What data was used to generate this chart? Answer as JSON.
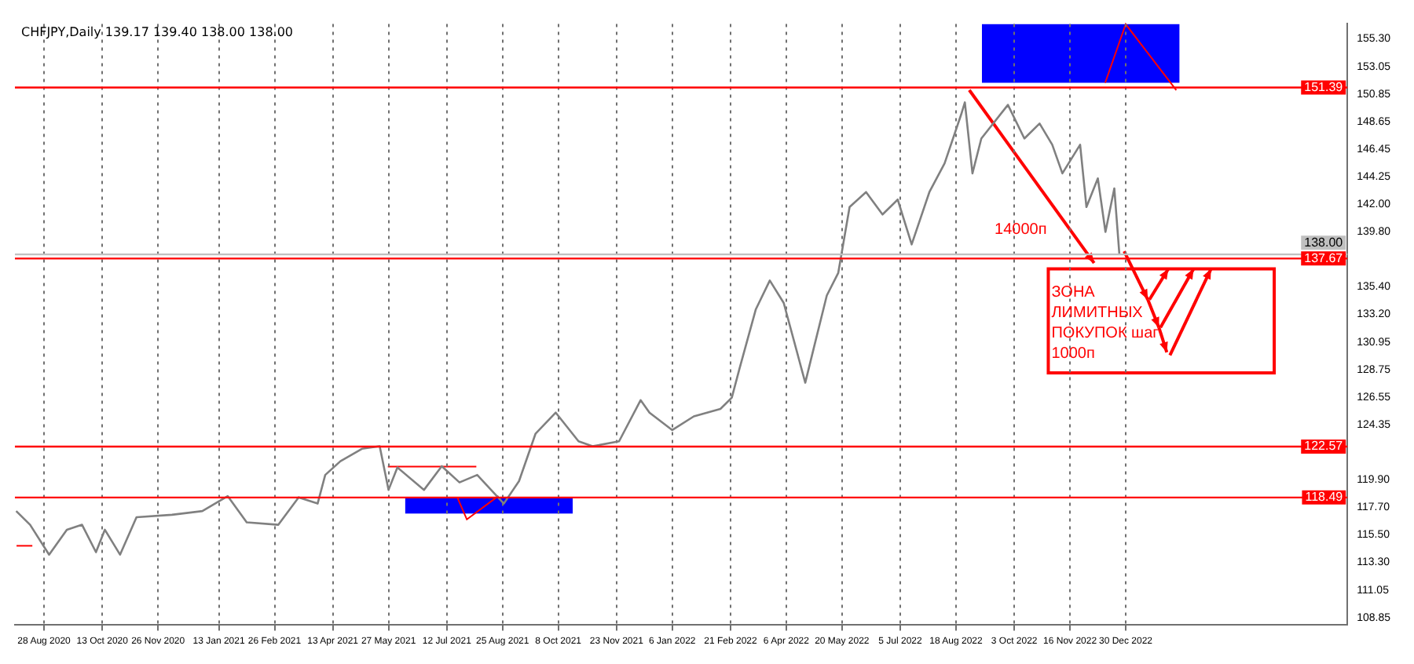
{
  "chart_data": {
    "type": "line",
    "title": "CHFJPY,Daily  139.17 139.40 138.00 138.00",
    "x": [
      "2020-08-06",
      "2020-08-17",
      "2020-09-01",
      "2020-09-15",
      "2020-09-27",
      "2020-10-08",
      "2020-10-15",
      "2020-10-27",
      "2020-11-09",
      "2020-12-07",
      "2020-12-31",
      "2021-01-20",
      "2021-02-04",
      "2021-03-01",
      "2021-03-17",
      "2021-04-01",
      "2021-04-07",
      "2021-04-19",
      "2021-05-06",
      "2021-05-20",
      "2021-05-27",
      "2021-06-03",
      "2021-06-24",
      "2021-07-08",
      "2021-07-22",
      "2021-08-05",
      "2021-08-26",
      "2021-09-07",
      "2021-09-20",
      "2021-10-06",
      "2021-10-24",
      "2021-11-04",
      "2021-11-25",
      "2021-12-12",
      "2021-12-19",
      "2022-01-06",
      "2022-01-23",
      "2022-02-13",
      "2022-02-22",
      "2022-02-28",
      "2022-03-13",
      "2022-03-24",
      "2022-04-04",
      "2022-04-21",
      "2022-04-28",
      "2022-05-08",
      "2022-05-17",
      "2022-05-26",
      "2022-06-08",
      "2022-06-21",
      "2022-07-03",
      "2022-07-14",
      "2022-07-28",
      "2022-08-09",
      "2022-08-22",
      "2022-08-25",
      "2022-08-31",
      "2022-09-07",
      "2022-09-28",
      "2022-10-11",
      "2022-10-23",
      "2022-11-02",
      "2022-11-10",
      "2022-11-24",
      "2022-11-29",
      "2022-12-08",
      "2022-12-14",
      "2022-12-21",
      "2022-12-25"
    ],
    "series": [
      {
        "color": "#808080",
        "values": [
          117.4,
          116.3,
          113.9,
          115.9,
          116.3,
          114.1,
          115.9,
          113.9,
          116.9,
          117.1,
          117.4,
          118.6,
          116.5,
          116.3,
          118.5,
          118.0,
          120.3,
          121.4,
          122.4,
          122.6,
          119.1,
          120.9,
          119.1,
          121.0,
          119.7,
          120.3,
          118.0,
          119.8,
          123.6,
          125.3,
          123.0,
          122.6,
          123.0,
          126.3,
          125.3,
          123.9,
          125.0,
          125.6,
          126.5,
          128.8,
          133.6,
          135.9,
          134.1,
          127.7,
          130.6,
          134.7,
          136.5,
          141.8,
          143.0,
          141.2,
          142.4,
          138.8,
          143.0,
          145.3,
          149.2,
          150.2,
          144.5,
          147.3,
          150.0,
          147.3,
          148.5,
          146.8,
          144.5,
          146.8,
          141.8,
          144.1,
          139.8,
          143.3,
          138.0
        ]
      }
    ],
    "xlim": [
      "2020-08-05",
      "2023-06-23"
    ],
    "xticks": [
      {
        "value": "2020-08-28",
        "label": "28 Aug 2020"
      },
      {
        "value": "2020-10-13",
        "label": "13 Oct 2020"
      },
      {
        "value": "2020-11-26",
        "label": "26 Nov 2020"
      },
      {
        "value": "2021-01-13",
        "label": "13 Jan 2021"
      },
      {
        "value": "2021-02-26",
        "label": "26 Feb 2021"
      },
      {
        "value": "2021-04-13",
        "label": "13 Apr 2021"
      },
      {
        "value": "2021-05-27",
        "label": "27 May 2021"
      },
      {
        "value": "2021-07-12",
        "label": "12 Jul 2021"
      },
      {
        "value": "2021-08-25",
        "label": "25 Aug 2021"
      },
      {
        "value": "2021-10-08",
        "label": "8 Oct 2021"
      },
      {
        "value": "2021-11-23",
        "label": "23 Nov 2021"
      },
      {
        "value": "2022-01-06",
        "label": "6 Jan 2022"
      },
      {
        "value": "2022-02-21",
        "label": "21 Feb 2022"
      },
      {
        "value": "2022-04-06",
        "label": "6 Apr 2022"
      },
      {
        "value": "2022-05-20",
        "label": "20 May 2022"
      },
      {
        "value": "2022-07-05",
        "label": "5 Jul 2022"
      },
      {
        "value": "2022-08-18",
        "label": "18 Aug 2022"
      },
      {
        "value": "2022-10-03",
        "label": "3 Oct 2022"
      },
      {
        "value": "2022-11-16",
        "label": "16 Nov 2022"
      },
      {
        "value": "2022-12-30",
        "label": "30 Dec 2022"
      }
    ],
    "ylim": [
      108.3,
      156.5
    ],
    "yticks": [
      {
        "value": 155.3,
        "label": "155.30"
      },
      {
        "value": 153.05,
        "label": "153.05"
      },
      {
        "value": 150.85,
        "label": "150.85"
      },
      {
        "value": 148.65,
        "label": "148.65"
      },
      {
        "value": 146.45,
        "label": "146.45"
      },
      {
        "value": 144.25,
        "label": "144.25"
      },
      {
        "value": 142.0,
        "label": "142.00"
      },
      {
        "value": 139.8,
        "label": "139.80"
      },
      {
        "value": 135.4,
        "label": "135.40"
      },
      {
        "value": 133.2,
        "label": "133.20"
      },
      {
        "value": 130.95,
        "label": "130.95"
      },
      {
        "value": 128.75,
        "label": "128.75"
      },
      {
        "value": 126.55,
        "label": "126.55"
      },
      {
        "value": 124.35,
        "label": "124.35"
      },
      {
        "value": 119.9,
        "label": "119.90"
      },
      {
        "value": 117.7,
        "label": "117.70"
      },
      {
        "value": 115.5,
        "label": "115.50"
      },
      {
        "value": 113.3,
        "label": "113.30"
      },
      {
        "value": 111.05,
        "label": "111.05"
      },
      {
        "value": 108.85,
        "label": "108.85"
      }
    ],
    "ref_lines": [
      {
        "axis": "y",
        "value": 151.39,
        "label": "151.39",
        "color": "#ff0000"
      },
      {
        "axis": "y",
        "value": 138.0,
        "label": "138.00",
        "color": "#c0c0c0"
      },
      {
        "axis": "y",
        "value": 137.67,
        "label": "137.67",
        "color": "#ff0000"
      },
      {
        "axis": "y",
        "value": 122.57,
        "label": "122.57",
        "color": "#ff0000"
      },
      {
        "axis": "y",
        "value": 118.49,
        "label": "118.49",
        "color": "#ff0000"
      }
    ],
    "annotations": [
      "14000п",
      "ЗОНА ЛИМИТНЫХ ПОКУПОК шаг 1000п"
    ],
    "grid": "x",
    "legend": false,
    "marker": "none",
    "line_style": "solid"
  }
}
